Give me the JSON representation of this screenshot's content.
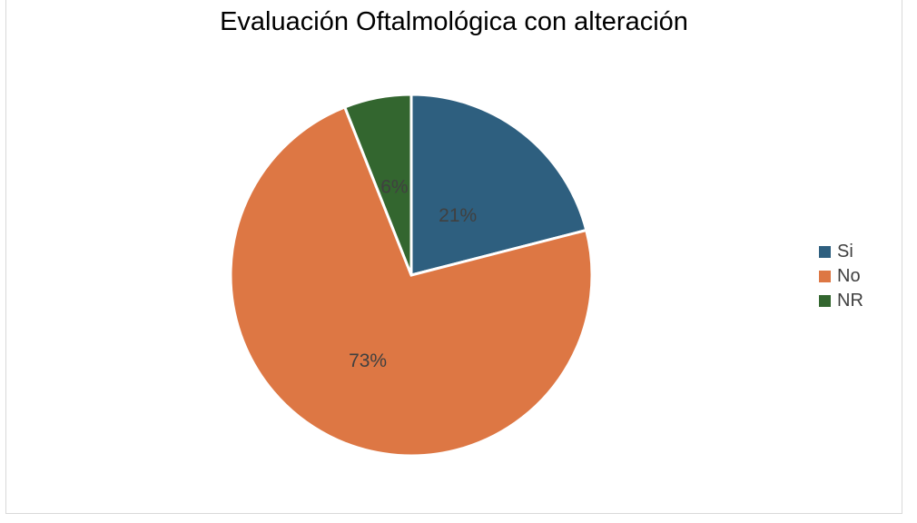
{
  "chart_data": {
    "type": "pie",
    "title": "Evaluación Oftalmológica con alteración",
    "categories": [
      "Si",
      "No",
      "NR"
    ],
    "values": [
      21,
      73,
      6
    ],
    "labels": [
      "21%",
      "73%",
      "6%"
    ],
    "colors": [
      "#2e5f7f",
      "#dd7744",
      "#33662f"
    ],
    "legend_position": "right"
  }
}
